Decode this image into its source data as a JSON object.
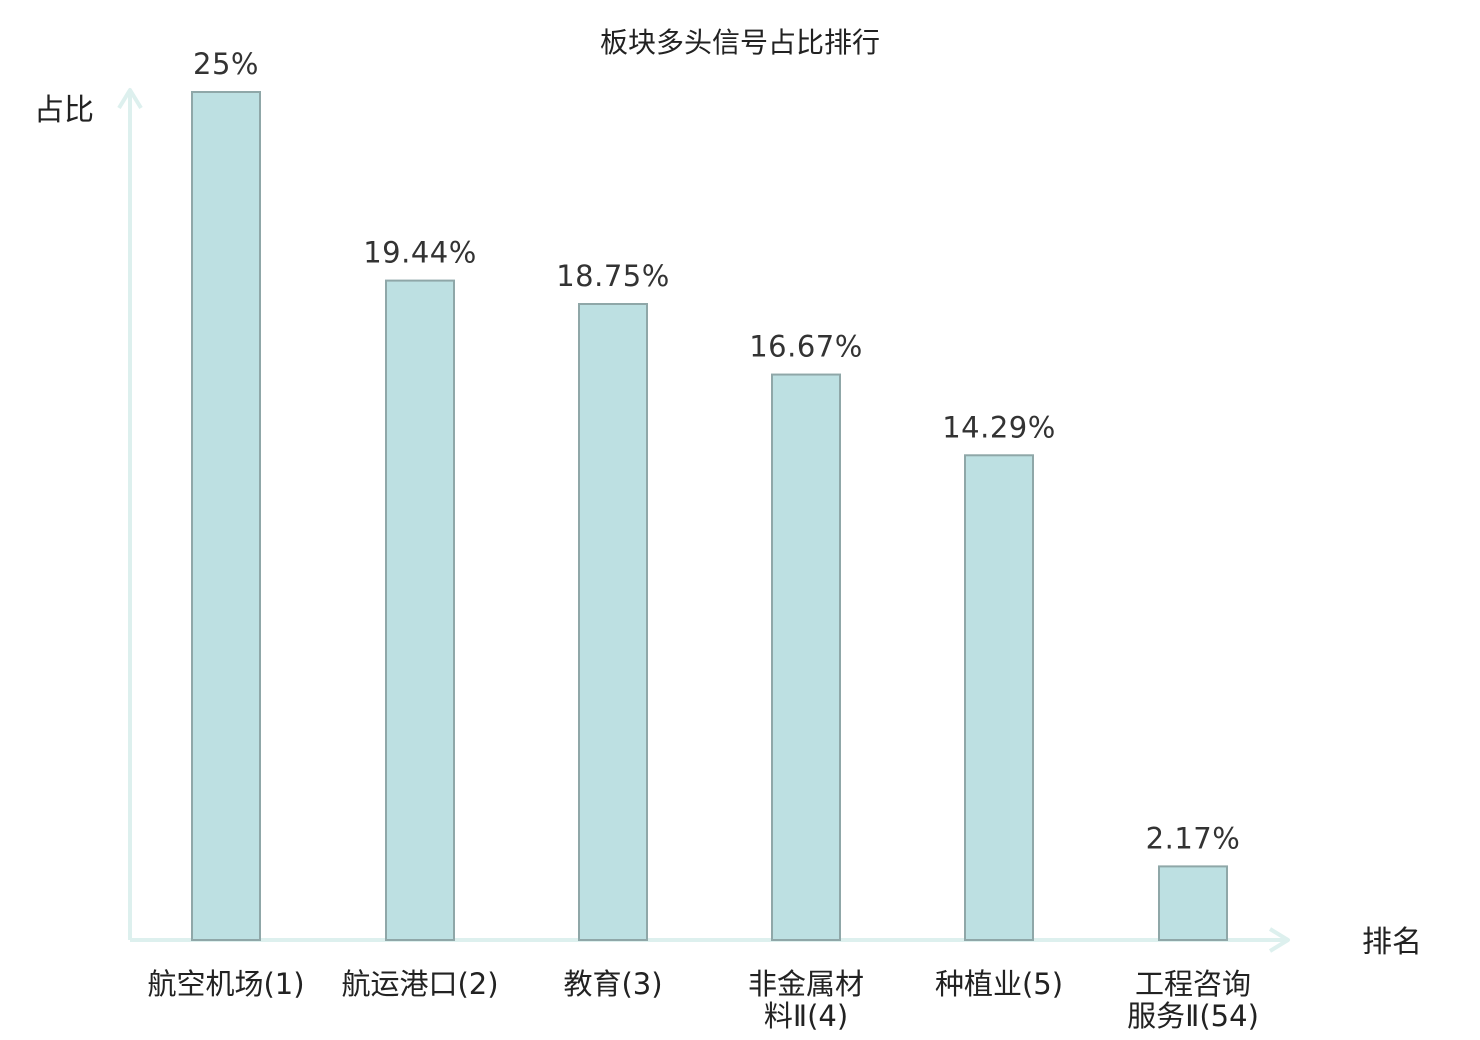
{
  "chart_data": {
    "type": "bar",
    "title": "板块多头信号占比排行",
    "ylabel": "占比",
    "xlabel": "排名",
    "ylim": [
      0,
      25
    ],
    "grid": false,
    "categories": [
      [
        "航空机场",
        "(1)"
      ],
      [
        "航运港口",
        "(2)"
      ],
      [
        "教育",
        "(3)"
      ],
      [
        "非金属材",
        "料Ⅱ(4)"
      ],
      [
        "种植业",
        "(5)"
      ],
      [
        "工程咨询",
        "服务Ⅱ(54)"
      ]
    ],
    "values": [
      25,
      19.44,
      18.75,
      16.67,
      14.29,
      2.17
    ],
    "value_labels": [
      "25%",
      "19.44%",
      "18.75%",
      "16.67%",
      "14.29%",
      "2.17%"
    ],
    "highlight_index": 5
  },
  "colors": {
    "bar_fill": "#bde0e2",
    "bar_stroke": "#8fa7a8",
    "axis": "#ddf0ee",
    "text": "#222222",
    "highlight_text": "#e0161b"
  }
}
